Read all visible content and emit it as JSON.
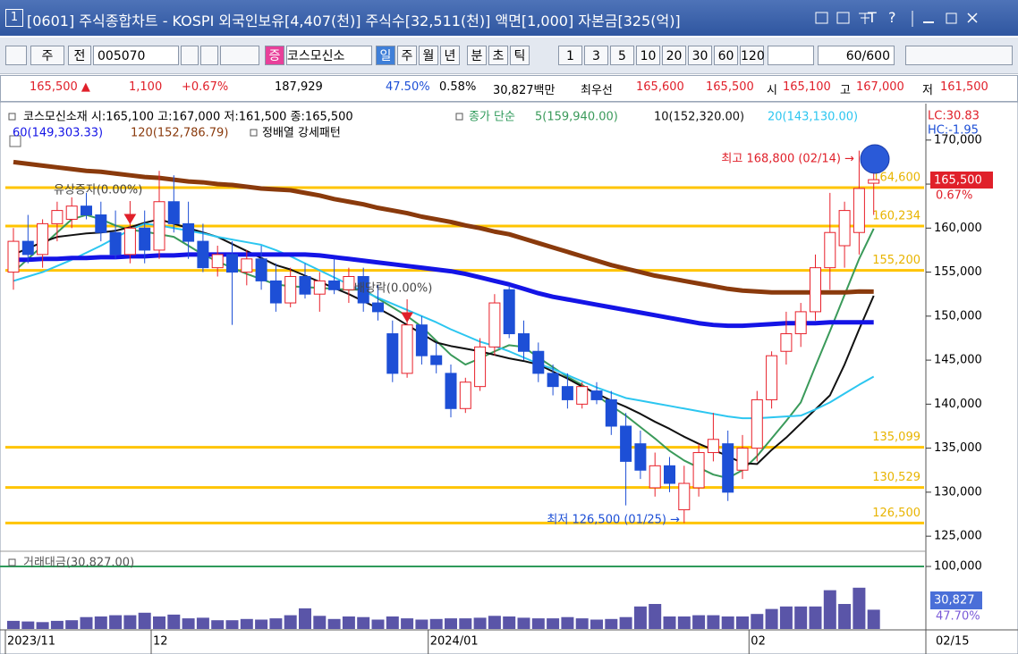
{
  "window": {
    "number": "1",
    "title": "[0601] 주식종합차트 - KOSPI 외국인보유[4,407(천)] 주식수[32,511(천)] 액면[1,000] 자본금[325(억)]",
    "controls": [
      "T",
      "?"
    ]
  },
  "toolbar": {
    "market": "주",
    "scope": "전",
    "code": "005070",
    "badge": "증",
    "name": "코스모신소",
    "periods": [
      "일",
      "주",
      "월",
      "년",
      "분",
      "초",
      "틱"
    ],
    "intervals": [
      "1",
      "3",
      "5",
      "10",
      "20",
      "30",
      "60",
      "120"
    ],
    "count": "60/600"
  },
  "quote_bar": {
    "price": "165,500 ▲",
    "change": "1,100",
    "change_rate": "+0.67%",
    "volume": "187,929",
    "volume_rate": "47.50%",
    "turnover": "0.58%",
    "amount": "30,827백만",
    "best_label": "최우선",
    "ask": "165,600",
    "bid": "165,500",
    "open_label": "시",
    "open": "165,100",
    "high_label": "고",
    "high": "167,000",
    "low_label": "저",
    "low": "161,500"
  },
  "chart_data": {
    "type": "candlestick",
    "title": "코스모신소재 시:165,100 고:167,000 저:161,500 종:165,500",
    "ma_title": "종가 단순",
    "pattern_label": "정배열 강세패턴",
    "up_color": "#e8202a",
    "down_color": "#1d4fd6",
    "categories": [
      "2023/11",
      null,
      null,
      null,
      null,
      null,
      null,
      null,
      null,
      null,
      "12",
      null,
      null,
      null,
      null,
      null,
      null,
      null,
      null,
      null,
      null,
      null,
      null,
      null,
      null,
      null,
      null,
      null,
      null,
      "2024/01",
      null,
      null,
      null,
      null,
      null,
      null,
      null,
      null,
      null,
      null,
      null,
      null,
      null,
      null,
      null,
      null,
      null,
      null,
      null,
      null,
      null,
      "02",
      null,
      null,
      null,
      null,
      null,
      null,
      null,
      null
    ],
    "candles": [
      [
        155000,
        160000,
        153000,
        158500
      ],
      [
        158500,
        161500,
        156000,
        157000
      ],
      [
        157000,
        161000,
        155500,
        160500
      ],
      [
        160500,
        163000,
        158500,
        162000
      ],
      [
        161000,
        163500,
        160000,
        162500
      ],
      [
        162500,
        164000,
        161000,
        161500
      ],
      [
        161500,
        163000,
        158500,
        159500
      ],
      [
        159500,
        162000,
        156500,
        157000
      ],
      [
        157000,
        161000,
        156000,
        160000
      ],
      [
        160000,
        162000,
        156000,
        157500
      ],
      [
        157500,
        166500,
        156500,
        163000
      ],
      [
        163000,
        166000,
        159500,
        160500
      ],
      [
        160500,
        163000,
        156500,
        158500
      ],
      [
        158500,
        160500,
        155000,
        155500
      ],
      [
        155500,
        158000,
        154500,
        157000
      ],
      [
        157000,
        158500,
        149000,
        155000
      ],
      [
        155000,
        157500,
        153500,
        156500
      ],
      [
        156500,
        158000,
        153000,
        154000
      ],
      [
        154000,
        156000,
        150500,
        151500
      ],
      [
        151500,
        155500,
        151000,
        154500
      ],
      [
        154500,
        156000,
        152000,
        152500
      ],
      [
        152500,
        155000,
        150500,
        154000
      ],
      [
        154000,
        156500,
        152500,
        153000
      ],
      [
        153000,
        155500,
        151500,
        154500
      ],
      [
        154500,
        155500,
        150500,
        151500
      ],
      [
        151500,
        153500,
        149500,
        150500
      ],
      [
        148000,
        149500,
        142500,
        143500
      ],
      [
        143500,
        149500,
        143000,
        149000
      ],
      [
        149000,
        150000,
        144500,
        145500
      ],
      [
        145500,
        147000,
        143500,
        144500
      ],
      [
        143500,
        144500,
        138500,
        139500
      ],
      [
        139500,
        143000,
        139000,
        142500
      ],
      [
        142000,
        147500,
        141500,
        146500
      ],
      [
        146500,
        152500,
        145500,
        151500
      ],
      [
        153000,
        153500,
        147500,
        148000
      ],
      [
        148000,
        149500,
        145000,
        146000
      ],
      [
        146000,
        147000,
        142500,
        143500
      ],
      [
        143500,
        144500,
        141000,
        142000
      ],
      [
        142000,
        143500,
        139500,
        140500
      ],
      [
        140000,
        142500,
        139500,
        142000
      ],
      [
        141500,
        142500,
        140000,
        140500
      ],
      [
        140500,
        141500,
        136500,
        137500
      ],
      [
        137500,
        139000,
        128500,
        133500
      ],
      [
        135500,
        137000,
        131500,
        132500
      ],
      [
        130500,
        134500,
        129500,
        133000
      ],
      [
        133000,
        134000,
        130000,
        131000
      ],
      [
        128000,
        133000,
        126500,
        131000
      ],
      [
        130500,
        135500,
        129500,
        134500
      ],
      [
        134500,
        139000,
        133500,
        136000
      ],
      [
        135500,
        137000,
        129000,
        130000
      ],
      [
        132500,
        136500,
        131500,
        135000
      ],
      [
        135000,
        141500,
        133500,
        140500
      ],
      [
        140500,
        146000,
        139500,
        145500
      ],
      [
        146000,
        150500,
        144500,
        148000
      ],
      [
        148000,
        151500,
        146500,
        150500
      ],
      [
        150500,
        157000,
        149500,
        155500
      ],
      [
        155500,
        164000,
        153000,
        159500
      ],
      [
        158000,
        163000,
        155500,
        162000
      ],
      [
        159500,
        168800,
        157000,
        164500
      ],
      [
        165100,
        167000,
        161500,
        165500
      ]
    ],
    "series": [
      {
        "name": "5(159,940.00)",
        "color": "#3a9a5a",
        "values": [
          155000,
          156500,
          158000,
          159500,
          161000,
          161500,
          161000,
          160300,
          159800,
          159600,
          159300,
          159000,
          158000,
          157000,
          156200,
          155500,
          154800,
          154200,
          153600,
          153400,
          153300,
          153200,
          153100,
          153000,
          153000,
          152000,
          151000,
          150000,
          148800,
          147200,
          145600,
          144500,
          145200,
          146000,
          146700,
          146500,
          145300,
          144200,
          143100,
          142200,
          141000,
          139800,
          138700,
          137400,
          136100,
          134700,
          133600,
          132800,
          132000,
          131600,
          132500,
          134100,
          136100,
          138100,
          140200,
          144300,
          148300,
          152400,
          156500,
          159940
        ]
      },
      {
        "name": "10(152,320.00)",
        "color": "#111111",
        "values": [
          157000,
          157700,
          158400,
          159000,
          159200,
          159400,
          159500,
          159700,
          160100,
          160600,
          161000,
          160500,
          160000,
          159500,
          159000,
          158200,
          157400,
          156600,
          155800,
          155300,
          154600,
          153900,
          153200,
          152500,
          151700,
          150900,
          150000,
          149000,
          148000,
          147000,
          146600,
          146300,
          146000,
          145600,
          145200,
          144900,
          144500,
          143700,
          142900,
          142000,
          141200,
          140400,
          139700,
          138900,
          138000,
          137200,
          136300,
          135500,
          134800,
          134100,
          133300,
          133200,
          134800,
          136200,
          137800,
          139400,
          141000,
          144500,
          148500,
          152320
        ]
      },
      {
        "name": "20(143,130.00)",
        "color": "#2cc6f0",
        "values": [
          154000,
          154500,
          155000,
          155700,
          156400,
          157200,
          158000,
          158900,
          159800,
          160500,
          160300,
          160000,
          159700,
          159400,
          159000,
          158700,
          158400,
          158100,
          157500,
          156800,
          156000,
          155200,
          154400,
          153600,
          152800,
          152100,
          151400,
          150700,
          150000,
          149300,
          148500,
          147800,
          147100,
          146600,
          146000,
          145300,
          144600,
          144000,
          143300,
          142600,
          141900,
          141300,
          140700,
          140400,
          140100,
          139800,
          139500,
          139200,
          138900,
          138600,
          138400,
          138400,
          138500,
          138600,
          138700,
          139400,
          140200,
          141200,
          142200,
          143130
        ]
      },
      {
        "name": "60(149,303.33)",
        "color": "#1414e6",
        "values": [
          156400,
          156400,
          156500,
          156500,
          156600,
          156600,
          156700,
          156700,
          156800,
          156800,
          156900,
          156900,
          157000,
          157000,
          157000,
          157000,
          157000,
          157000,
          157000,
          157000,
          157000,
          156900,
          156700,
          156500,
          156300,
          156100,
          155900,
          155700,
          155500,
          155300,
          155100,
          154800,
          154400,
          154000,
          153600,
          153100,
          152600,
          152200,
          151900,
          151600,
          151300,
          151000,
          150700,
          150400,
          150100,
          149800,
          149500,
          149200,
          149000,
          148900,
          148900,
          149000,
          149100,
          149200,
          149200,
          149200,
          149300,
          149300,
          149300,
          149303.33
        ]
      },
      {
        "name": "120(152,786.79)",
        "color": "#8a3a0c",
        "values": [
          167500,
          167300,
          167100,
          166900,
          166700,
          166500,
          166400,
          166200,
          166000,
          165800,
          165700,
          165500,
          165300,
          165200,
          165000,
          164900,
          164700,
          164500,
          164400,
          164300,
          164000,
          163700,
          163300,
          163000,
          162700,
          162300,
          162000,
          161700,
          161300,
          161000,
          160700,
          160300,
          160000,
          159600,
          159300,
          158800,
          158300,
          157800,
          157300,
          156800,
          156300,
          155800,
          155400,
          155000,
          154600,
          154300,
          154000,
          153700,
          153400,
          153100,
          152900,
          152800,
          152700,
          152700,
          152700,
          152700,
          152700,
          152700,
          152800,
          152786.79
        ]
      }
    ],
    "ylim": [
      124000,
      171500
    ],
    "yticks": [
      {
        "value": 125000,
        "label": "125,000"
      },
      {
        "value": 130000,
        "label": "130,000"
      },
      {
        "value": 135000,
        "label": "135,000"
      },
      {
        "value": 140000,
        "label": "140,000"
      },
      {
        "value": 145000,
        "label": "145,000"
      },
      {
        "value": 150000,
        "label": "150,000"
      },
      {
        "value": 155000,
        "label": "155,000"
      },
      {
        "value": 160000,
        "label": "160,000"
      },
      {
        "value": 165000,
        "label": "165,000"
      },
      {
        "value": 170000,
        "label": "170,000"
      }
    ],
    "level_color": "#ffc400",
    "levels": [
      {
        "value": 164600,
        "label": "164,600"
      },
      {
        "value": 160234,
        "label": "160,234"
      },
      {
        "value": 155200,
        "label": "155,200"
      },
      {
        "value": 135099,
        "label": "135,099"
      },
      {
        "value": 130529,
        "label": "130,529"
      },
      {
        "value": 126500,
        "label": "126,500"
      }
    ],
    "high_note": "최고 168,800 (02/14) →",
    "low_note": "최저 126,500 (01/25) →",
    "events": [
      "유상증자(0.00%)",
      "배당락(0.00%)"
    ],
    "lc": "LC:30.83",
    "hc": "HC:-1.95",
    "last_price": "165,500",
    "last_change": "0.67%",
    "cursor_date": "02/15",
    "volume": {
      "title": "거래대금(30,827.00)",
      "color": "#5a55a8",
      "ylim": [
        0,
        120000
      ],
      "yticks": [
        {
          "value": 100000,
          "label": "100,000"
        }
      ],
      "values": [
        13000,
        12000,
        11000,
        13000,
        14000,
        19000,
        20000,
        22000,
        22000,
        26000,
        20000,
        23000,
        17000,
        18000,
        14000,
        14000,
        16000,
        15000,
        17000,
        22000,
        33000,
        21000,
        16000,
        20000,
        19000,
        15000,
        20000,
        17000,
        15000,
        16000,
        17000,
        17000,
        18000,
        21000,
        20000,
        18000,
        17000,
        17000,
        19000,
        17000,
        15000,
        16000,
        19000,
        36000,
        40000,
        20000,
        20000,
        22000,
        22000,
        20000,
        20000,
        24000,
        32000,
        36000,
        36000,
        36000,
        62000,
        40000,
        66000,
        30827
      ],
      "last_label": "30,827",
      "last_rate": "47.70%"
    }
  }
}
